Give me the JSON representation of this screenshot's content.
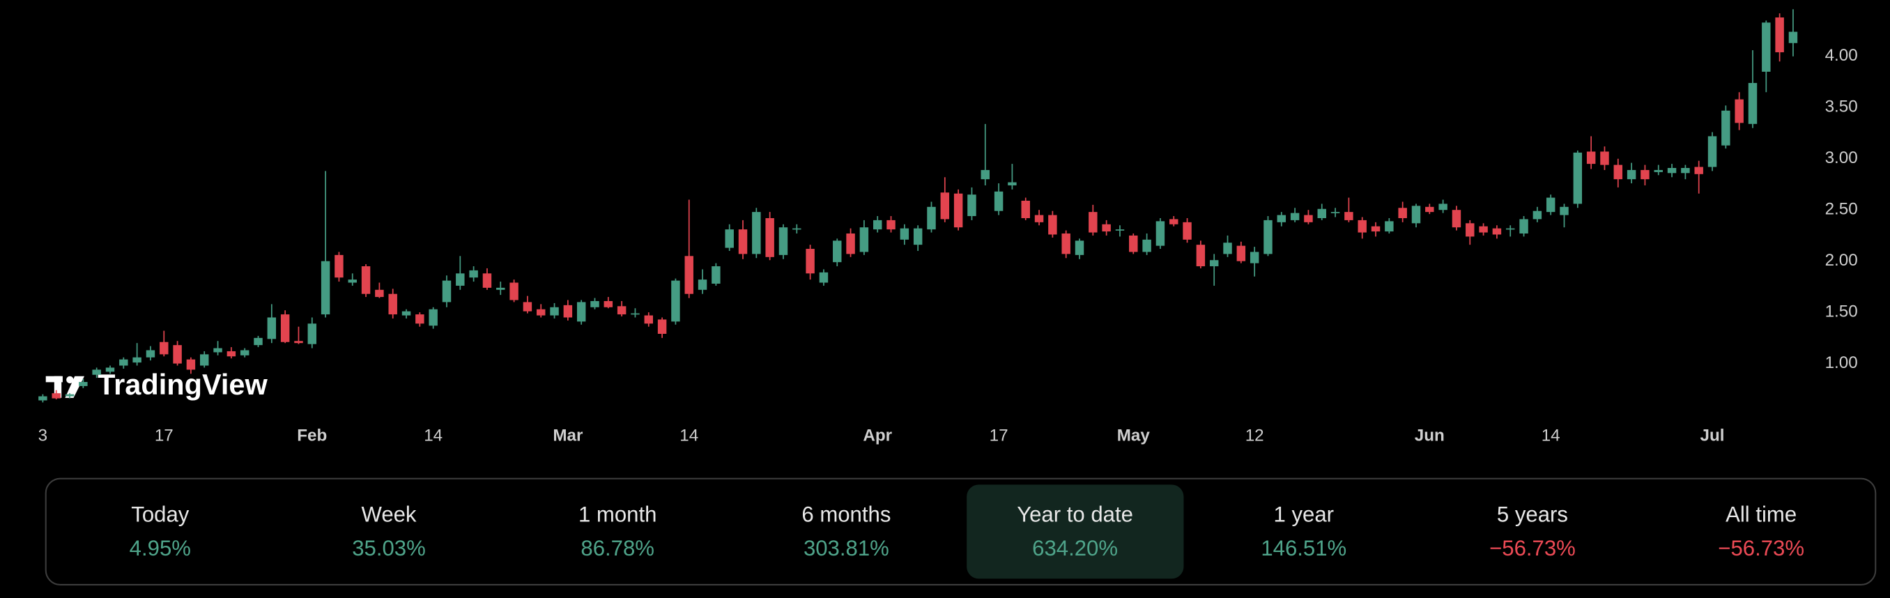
{
  "watermark": "TradingView",
  "chart_data": {
    "type": "candlestick",
    "categories": [
      "3",
      null,
      null,
      null,
      null,
      null,
      null,
      null,
      null,
      "17",
      null,
      null,
      null,
      null,
      null,
      null,
      null,
      null,
      null,
      null,
      "Feb",
      null,
      null,
      null,
      null,
      null,
      null,
      null,
      null,
      "14",
      null,
      null,
      null,
      null,
      null,
      null,
      null,
      null,
      null,
      "Mar",
      null,
      null,
      null,
      null,
      null,
      null,
      null,
      null,
      "14",
      null,
      null,
      null,
      null,
      null,
      null,
      null,
      null,
      null,
      null,
      null,
      null,
      null,
      "Apr",
      null,
      null,
      null,
      null,
      null,
      null,
      null,
      null,
      "17",
      null,
      null,
      null,
      null,
      null,
      null,
      null,
      null,
      null,
      "May",
      null,
      null,
      null,
      null,
      null,
      null,
      null,
      null,
      "12",
      null,
      null,
      null,
      null,
      null,
      null,
      null,
      null,
      null,
      null,
      null,
      null,
      "Jun",
      null,
      null,
      null,
      null,
      null,
      null,
      null,
      null,
      "14",
      null,
      null,
      null,
      null,
      null,
      null,
      null,
      null,
      null,
      null,
      null,
      "Jul",
      null,
      null,
      null,
      null,
      null,
      null
    ],
    "open": [
      0.64,
      0.71,
      0.68,
      0.78,
      0.89,
      0.92,
      0.98,
      1.01,
      1.06,
      1.21,
      1.18,
      1.04,
      0.98,
      1.11,
      1.12,
      1.08,
      1.18,
      1.24,
      1.48,
      1.22,
      1.19,
      1.48,
      2.06,
      1.79,
      1.95,
      1.72,
      1.68,
      1.47,
      1.48,
      1.37,
      1.6,
      1.76,
      1.84,
      1.88,
      1.72,
      1.79,
      1.6,
      1.53,
      1.47,
      1.57,
      1.41,
      1.55,
      1.61,
      1.56,
      1.48,
      1.47,
      1.43,
      1.41,
      2.05,
      1.72,
      1.78,
      2.13,
      2.31,
      2.07,
      2.42,
      2.06,
      2.31,
      2.12,
      1.79,
      1.99,
      2.27,
      2.09,
      2.31,
      2.4,
      2.21,
      2.16,
      2.31,
      2.67,
      2.66,
      2.44,
      2.8,
      2.49,
      2.74,
      2.59,
      2.45,
      2.45,
      2.27,
      2.06,
      2.48,
      2.36,
      2.3,
      2.25,
      2.09,
      2.15,
      2.41,
      2.38,
      2.16,
      1.95,
      2.07,
      2.15,
      1.98,
      2.07,
      2.38,
      2.4,
      2.45,
      2.42,
      2.47,
      2.48,
      2.4,
      2.34,
      2.29,
      2.52,
      2.37,
      2.53,
      2.5,
      2.5,
      2.37,
      2.34,
      2.32,
      2.31,
      2.27,
      2.41,
      2.48,
      2.45,
      2.56,
      3.07,
      3.07,
      2.94,
      2.8,
      2.89,
      2.87,
      2.86,
      2.86,
      2.92,
      2.92,
      3.13,
      3.58,
      3.34,
      3.85,
      4.38,
      4.13
    ],
    "high": [
      0.7,
      0.74,
      0.71,
      0.85,
      0.96,
      0.98,
      1.06,
      1.2,
      1.17,
      1.32,
      1.22,
      1.06,
      1.12,
      1.22,
      1.16,
      1.15,
      1.27,
      1.58,
      1.52,
      1.36,
      1.45,
      2.88,
      2.09,
      1.88,
      1.97,
      1.79,
      1.73,
      1.53,
      1.5,
      1.55,
      1.86,
      2.05,
      1.95,
      1.93,
      1.8,
      1.82,
      1.66,
      1.58,
      1.59,
      1.62,
      1.62,
      1.64,
      1.65,
      1.61,
      1.54,
      1.5,
      1.45,
      1.83,
      2.6,
      1.92,
      1.98,
      2.36,
      2.4,
      2.52,
      2.48,
      2.36,
      2.36,
      2.16,
      1.92,
      2.22,
      2.32,
      2.4,
      2.44,
      2.44,
      2.36,
      2.35,
      2.58,
      2.82,
      2.7,
      2.72,
      3.34,
      2.76,
      2.95,
      2.62,
      2.5,
      2.49,
      2.3,
      2.22,
      2.55,
      2.4,
      2.35,
      2.27,
      2.27,
      2.42,
      2.44,
      2.42,
      2.2,
      2.07,
      2.25,
      2.19,
      2.14,
      2.44,
      2.48,
      2.52,
      2.5,
      2.56,
      2.52,
      2.62,
      2.43,
      2.38,
      2.42,
      2.58,
      2.56,
      2.56,
      2.6,
      2.54,
      2.4,
      2.37,
      2.35,
      2.35,
      2.44,
      2.53,
      2.65,
      2.56,
      3.08,
      3.22,
      3.12,
      3.0,
      2.96,
      2.94,
      2.94,
      2.95,
      2.94,
      2.98,
      3.26,
      3.52,
      3.65,
      4.06,
      4.35,
      4.42,
      4.46
    ],
    "low": [
      0.62,
      0.65,
      0.66,
      0.76,
      0.86,
      0.9,
      0.95,
      0.98,
      1.03,
      1.07,
      0.98,
      0.9,
      0.96,
      1.08,
      1.05,
      1.06,
      1.16,
      1.2,
      1.2,
      1.19,
      1.15,
      1.45,
      1.8,
      1.76,
      1.65,
      1.64,
      1.44,
      1.44,
      1.36,
      1.34,
      1.55,
      1.72,
      1.8,
      1.72,
      1.67,
      1.6,
      1.49,
      1.45,
      1.44,
      1.42,
      1.38,
      1.53,
      1.54,
      1.46,
      1.45,
      1.36,
      1.25,
      1.38,
      1.64,
      1.68,
      1.76,
      2.1,
      2.02,
      2.03,
      2.01,
      2.02,
      2.27,
      1.82,
      1.76,
      1.95,
      2.04,
      2.06,
      2.28,
      2.28,
      2.16,
      2.1,
      2.28,
      2.38,
      2.3,
      2.4,
      2.74,
      2.45,
      2.7,
      2.4,
      2.35,
      2.23,
      2.03,
      2.02,
      2.25,
      2.25,
      2.24,
      2.07,
      2.06,
      2.12,
      2.34,
      2.18,
      1.93,
      1.76,
      2.04,
      1.98,
      1.85,
      2.05,
      2.34,
      2.38,
      2.36,
      2.4,
      2.43,
      2.38,
      2.22,
      2.24,
      2.27,
      2.38,
      2.33,
      2.46,
      2.47,
      2.3,
      2.16,
      2.25,
      2.22,
      2.24,
      2.24,
      2.38,
      2.45,
      2.33,
      2.52,
      2.9,
      2.89,
      2.72,
      2.76,
      2.74,
      2.84,
      2.82,
      2.8,
      2.66,
      2.88,
      3.1,
      3.28,
      3.3,
      3.65,
      3.95,
      4.0
    ],
    "close": [
      0.68,
      0.66,
      0.7,
      0.82,
      0.94,
      0.96,
      1.04,
      1.06,
      1.13,
      1.09,
      1.0,
      0.94,
      1.09,
      1.15,
      1.07,
      1.13,
      1.25,
      1.45,
      1.21,
      1.2,
      1.39,
      2.0,
      1.84,
      1.82,
      1.68,
      1.65,
      1.48,
      1.51,
      1.39,
      1.53,
      1.81,
      1.88,
      1.91,
      1.74,
      1.74,
      1.62,
      1.51,
      1.47,
      1.55,
      1.45,
      1.6,
      1.61,
      1.55,
      1.48,
      1.49,
      1.39,
      1.29,
      1.81,
      1.68,
      1.82,
      1.95,
      2.31,
      2.07,
      2.48,
      2.04,
      2.33,
      2.32,
      1.88,
      1.89,
      2.2,
      2.07,
      2.33,
      2.4,
      2.31,
      2.32,
      2.32,
      2.53,
      2.41,
      2.33,
      2.65,
      2.89,
      2.68,
      2.77,
      2.42,
      2.38,
      2.26,
      2.07,
      2.2,
      2.28,
      2.29,
      2.31,
      2.09,
      2.21,
      2.39,
      2.36,
      2.21,
      1.95,
      2.01,
      2.18,
      2.0,
      2.09,
      2.4,
      2.45,
      2.47,
      2.38,
      2.51,
      2.48,
      2.4,
      2.28,
      2.29,
      2.39,
      2.42,
      2.54,
      2.48,
      2.56,
      2.33,
      2.24,
      2.28,
      2.26,
      2.32,
      2.41,
      2.49,
      2.62,
      2.53,
      3.06,
      2.95,
      2.94,
      2.8,
      2.89,
      2.8,
      2.89,
      2.91,
      2.91,
      2.85,
      3.22,
      3.47,
      3.35,
      3.74,
      4.33,
      4.04,
      4.24
    ],
    "up_color": "#459c83",
    "down_color": "#e2444f",
    "ylim": [
      0.5,
      4.55
    ],
    "yticks": [
      {
        "value": 1,
        "label": "1.00"
      },
      {
        "value": 1.5,
        "label": "1.50"
      },
      {
        "value": 2,
        "label": "2.00"
      },
      {
        "value": 2.5,
        "label": "2.50"
      },
      {
        "value": 3,
        "label": "3.00"
      },
      {
        "value": 3.5,
        "label": "3.50"
      },
      {
        "value": 4,
        "label": "4.00"
      }
    ],
    "grid": false
  },
  "performance": [
    {
      "period": "Today",
      "change": "4.95%",
      "color": "#4fa48a"
    },
    {
      "period": "Week",
      "change": "35.03%",
      "color": "#4fa48a"
    },
    {
      "period": "1 month",
      "change": "86.78%",
      "color": "#4fa48a"
    },
    {
      "period": "6 months",
      "change": "303.81%",
      "color": "#4fa48a"
    },
    {
      "period": "Year to date",
      "change": "634.20%",
      "color": "#4fa48a"
    },
    {
      "period": "1 year",
      "change": "146.51%",
      "color": "#4fa48a"
    },
    {
      "period": "5 years",
      "change": "−56.73%",
      "color": "#ec4a55"
    },
    {
      "period": "All time",
      "change": "−56.73%",
      "color": "#ec4a55"
    }
  ]
}
